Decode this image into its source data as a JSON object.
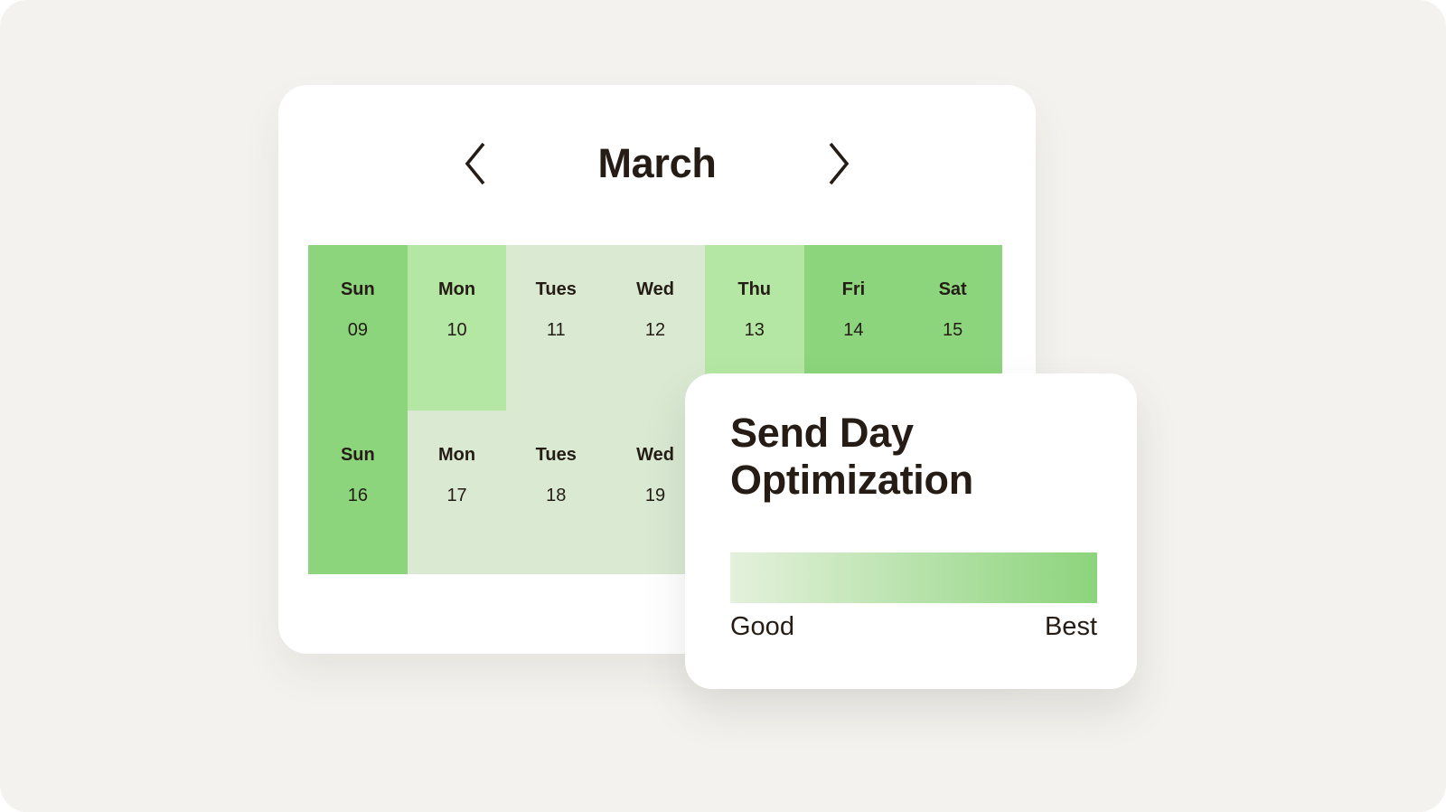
{
  "page": {
    "background_color": "#F3F2EE"
  },
  "calendar": {
    "title": "March",
    "prev_icon": "chevron-left-icon",
    "next_icon": "chevron-right-icon",
    "tones": {
      "strong": "#8CD57C",
      "medium": "#B5E7A4",
      "pale": "#D9E9D2"
    },
    "weeks": [
      {
        "days": [
          {
            "label": "Sun",
            "date": "09",
            "tone": "strong",
            "hidden": false
          },
          {
            "label": "Mon",
            "date": "10",
            "tone": "medium",
            "hidden": false
          },
          {
            "label": "Tues",
            "date": "11",
            "tone": "pale",
            "hidden": false
          },
          {
            "label": "Wed",
            "date": "12",
            "tone": "pale",
            "hidden": false
          },
          {
            "label": "Thu",
            "date": "13",
            "tone": "medium",
            "hidden": false
          },
          {
            "label": "Fri",
            "date": "14",
            "tone": "strong",
            "hidden": false
          },
          {
            "label": "Sat",
            "date": "15",
            "tone": "strong",
            "hidden": false
          }
        ]
      },
      {
        "days": [
          {
            "label": "Sun",
            "date": "16",
            "tone": "strong",
            "hidden": false
          },
          {
            "label": "Mon",
            "date": "17",
            "tone": "pale",
            "hidden": false
          },
          {
            "label": "Tues",
            "date": "18",
            "tone": "pale",
            "hidden": false
          },
          {
            "label": "Wed",
            "date": "19",
            "tone": "pale",
            "hidden": false
          },
          {
            "label": "",
            "date": "",
            "tone": "medium",
            "hidden": true
          },
          {
            "label": "",
            "date": "",
            "tone": "strong",
            "hidden": true
          },
          {
            "label": "",
            "date": "",
            "tone": "strong",
            "hidden": true
          }
        ]
      }
    ]
  },
  "send_card": {
    "title": "Send Day Optimization",
    "bar": {
      "gradient_from": "#E4F1DC",
      "gradient_to": "#8CD47C"
    },
    "scale": {
      "left": "Good",
      "right": "Best"
    }
  },
  "text_color": "#241C15"
}
